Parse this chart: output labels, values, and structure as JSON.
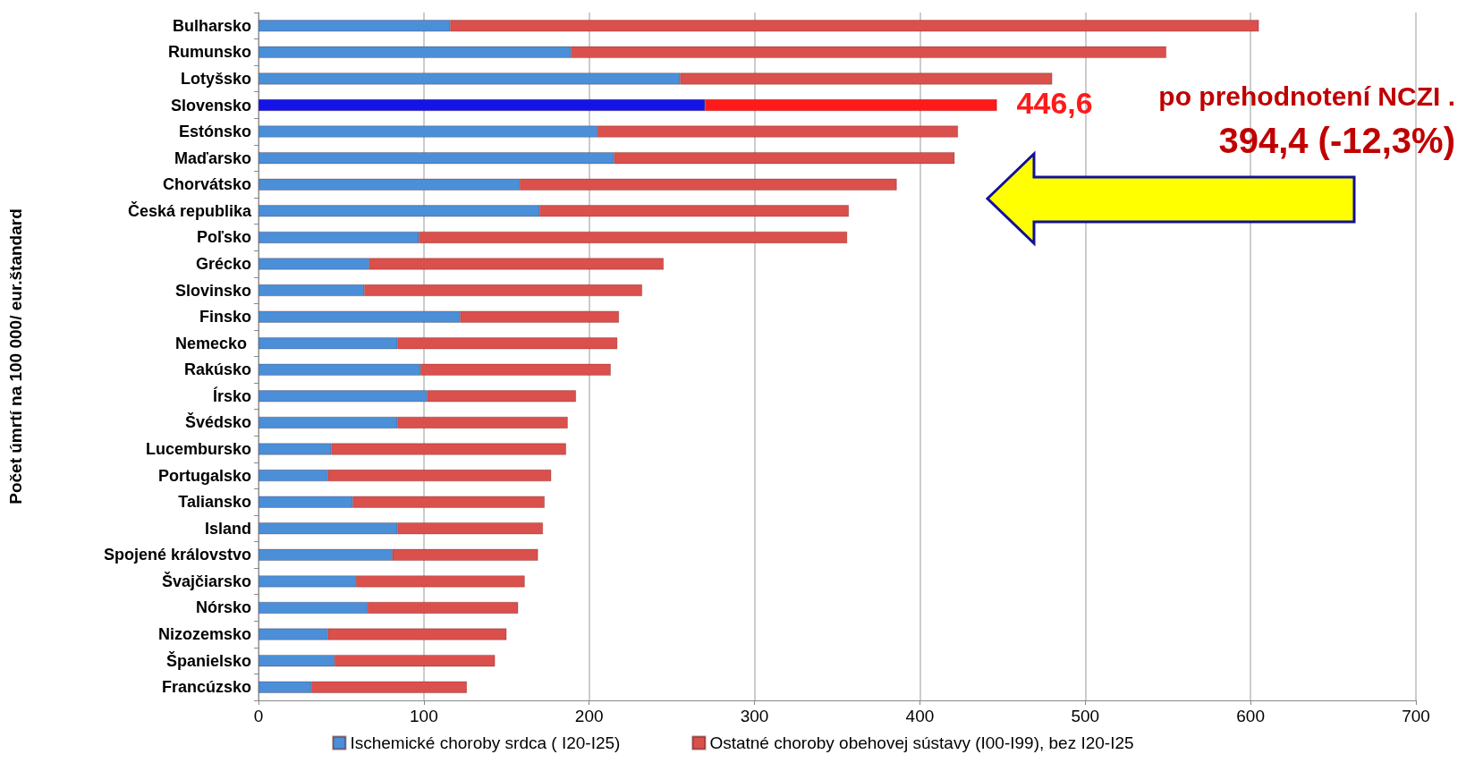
{
  "chart_data": {
    "type": "bar",
    "orientation": "horizontal",
    "stacked": true,
    "ylabel": "Počet úmrtí na 100 000/ eur.štandard",
    "categories": [
      "Bulharsko",
      "Rumunsko",
      "Lotyšsko",
      "Slovensko",
      "Estónsko",
      "Maďarsko",
      "Chorvátsko",
      "Česká republika",
      "Poľsko",
      "Grécko",
      "Slovinsko",
      "Finsko",
      "Nemecko ",
      "Rakúsko",
      "Írsko",
      "Švédsko",
      "Lucembursko",
      "Portugalsko",
      "Taliansko",
      "Island",
      "Spojené královstvo",
      "Švajčiarsko",
      "Nórsko",
      "Nizozemsko",
      "Španielsko",
      "Francúzsko"
    ],
    "series": [
      {
        "name": "Ischemické choroby srdca ( I20-I25)",
        "color": "#4a8fd8",
        "colors": [
          "#4a8fd8",
          "#4a8fd8",
          "#4a8fd8",
          "#1414e6",
          "#4a8fd8",
          "#4a8fd8",
          "#4a8fd8",
          "#4a8fd8",
          "#4a8fd8",
          "#4a8fd8",
          "#4a8fd8",
          "#4a8fd8",
          "#4a8fd8",
          "#4a8fd8",
          "#4a8fd8",
          "#4a8fd8",
          "#4a8fd8",
          "#4a8fd8",
          "#4a8fd8",
          "#4a8fd8",
          "#4a8fd8",
          "#4a8fd8",
          "#4a8fd8",
          "#4a8fd8",
          "#4a8fd8",
          "#4a8fd8"
        ],
        "values": [
          116,
          189,
          255,
          270,
          205,
          215,
          158,
          170,
          97,
          67,
          64,
          122,
          84,
          98,
          102,
          84,
          44,
          42,
          57,
          84,
          81,
          59,
          66,
          42,
          46,
          32
        ]
      },
      {
        "name": "Ostatné choroby obehovej sústavy (I00-I99), bez I20-I25",
        "color": "#d9504c",
        "colors": [
          "#d9504c",
          "#d9504c",
          "#d9504c",
          "#ff1a1a",
          "#d9504c",
          "#d9504c",
          "#d9504c",
          "#d9504c",
          "#d9504c",
          "#d9504c",
          "#d9504c",
          "#d9504c",
          "#d9504c",
          "#d9504c",
          "#d9504c",
          "#d9504c",
          "#d9504c",
          "#d9504c",
          "#d9504c",
          "#d9504c",
          "#d9504c",
          "#d9504c",
          "#d9504c",
          "#d9504c",
          "#d9504c",
          "#d9504c"
        ],
        "values": [
          489,
          360,
          225,
          176.6,
          218,
          206,
          228,
          187,
          259,
          178,
          168,
          96,
          133,
          115,
          90,
          103,
          142,
          135,
          116,
          88,
          88,
          102,
          91,
          108,
          97,
          94
        ]
      }
    ],
    "xlim": [
      0,
      700
    ],
    "xticks": [
      0,
      100,
      200,
      300,
      400,
      500,
      600,
      700
    ],
    "grid": "x",
    "legend": "bottom",
    "annotations": [
      {
        "text": "446,6",
        "x": 446.6,
        "y": "Slovensko"
      },
      "po prehodnotení NCZI .",
      "394,4 (-12,3%)"
    ]
  }
}
